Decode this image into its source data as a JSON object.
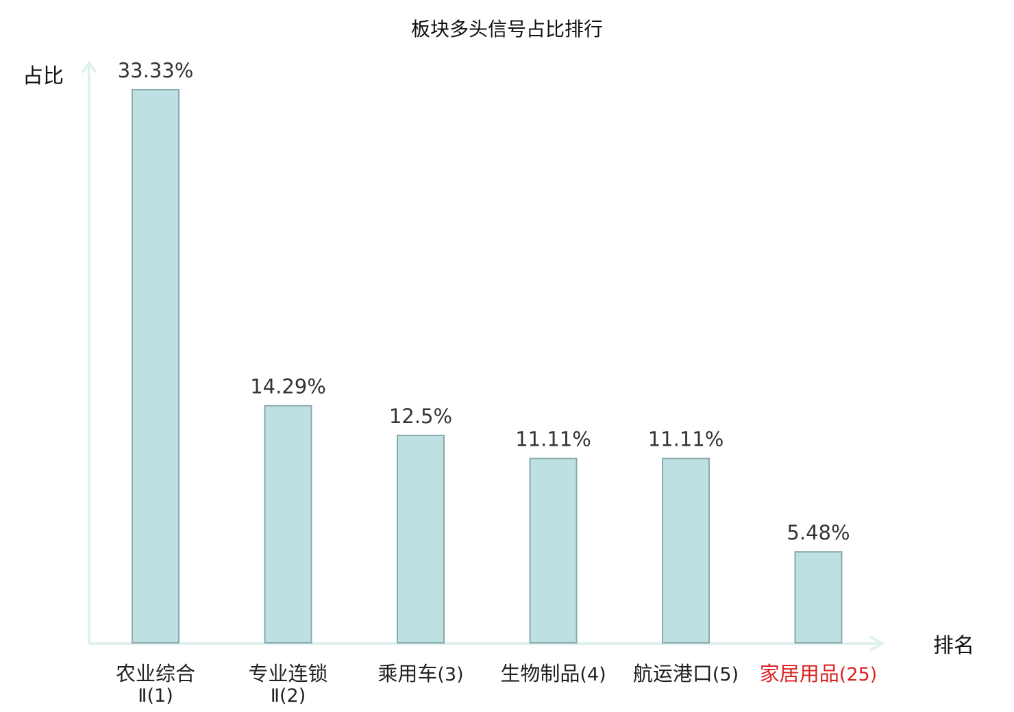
{
  "chart_data": {
    "type": "bar",
    "title": "板块多头信号占比排行",
    "xlabel": "排名",
    "ylabel": "占比",
    "categories": [
      {
        "name": "农业综合",
        "rank_text": "Ⅱ(1)",
        "highlight": false
      },
      {
        "name": "专业连锁",
        "rank_text": "Ⅱ(2)",
        "highlight": false
      },
      {
        "name": "乘用车",
        "rank_text": "(3)",
        "highlight": false
      },
      {
        "name": "生物制品",
        "rank_text": "(4)",
        "highlight": false
      },
      {
        "name": "航运港口",
        "rank_text": "(5)",
        "highlight": false
      },
      {
        "name": "家居用品",
        "rank_text": "(25)",
        "highlight": true
      }
    ],
    "values": [
      33.33,
      14.29,
      12.5,
      11.11,
      11.11,
      5.48
    ],
    "value_labels": [
      "33.33%",
      "14.29%",
      "12.5%",
      "11.11%",
      "11.11%",
      "5.48%"
    ],
    "ylim": [
      0,
      33.33
    ],
    "grid": false,
    "legend": "none"
  },
  "colors": {
    "bar_fill": "#bde1e3",
    "bar_stroke": "#8aa9ac",
    "axis": "#dff1ee",
    "label_normal": "#222222",
    "label_highlight": "#dd2222"
  }
}
